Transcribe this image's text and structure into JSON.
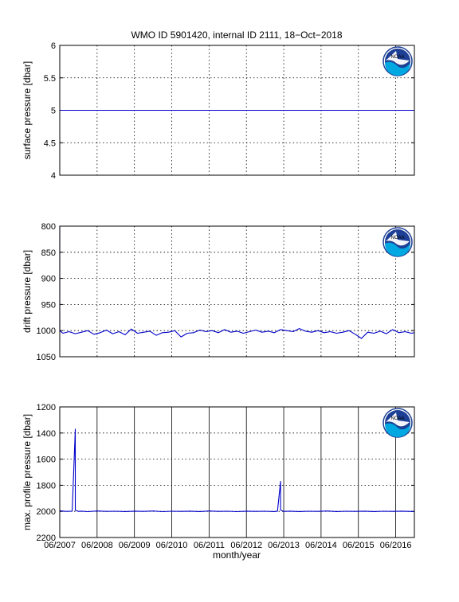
{
  "title": "WMO ID 5901420, internal ID 2111, 18−Oct−2018",
  "xlabel": "month/year",
  "x_ticks": [
    "06/2007",
    "06/2008",
    "06/2009",
    "06/2010",
    "06/2011",
    "06/2012",
    "06/2013",
    "06/2014",
    "06/2015",
    "06/2016"
  ],
  "x_range": [
    "2007-06",
    "2016-12"
  ],
  "logo": {
    "name": "noaa-logo",
    "text": "NOAA",
    "colors": [
      "#1d3f95",
      "#00a8e1",
      "#ffffff"
    ]
  },
  "line_color": "#0000cc",
  "chart_data": [
    {
      "type": "line",
      "ylabel": "surface pressure [dbar]",
      "ylim": [
        4,
        6
      ],
      "y_reversed": false,
      "yticks": [
        "4",
        "4.5",
        "5",
        "5.5",
        "6"
      ],
      "grid": "dotted",
      "series": [
        {
          "x": [
            "2007-06",
            "2016-12"
          ],
          "y": [
            5,
            5
          ]
        }
      ]
    },
    {
      "type": "line",
      "ylabel": "drift pressure [dbar]",
      "ylim": [
        800,
        1050
      ],
      "y_reversed": true,
      "yticks": [
        "800",
        "850",
        "900",
        "950",
        "1000",
        "1050"
      ],
      "grid": "dotted",
      "series": [
        {
          "x": [
            "2007-06",
            "2007-06",
            "2007-07",
            "2007-09",
            "2007-11",
            "2008-01",
            "2008-03",
            "2008-05",
            "2008-07",
            "2008-09",
            "2008-11",
            "2009-01",
            "2009-03",
            "2009-05",
            "2009-07",
            "2009-09",
            "2009-11",
            "2010-01",
            "2010-03",
            "2010-05",
            "2010-07",
            "2010-09",
            "2010-11",
            "2011-01",
            "2011-03",
            "2011-05",
            "2011-07",
            "2011-09",
            "2011-11",
            "2012-01",
            "2012-03",
            "2012-05",
            "2012-07",
            "2012-09",
            "2012-11",
            "2013-01",
            "2013-03",
            "2013-05",
            "2013-07",
            "2013-09",
            "2013-11",
            "2014-01",
            "2014-03",
            "2014-05",
            "2014-07",
            "2014-09",
            "2014-11",
            "2015-01",
            "2015-03",
            "2015-05",
            "2015-07",
            "2015-09",
            "2015-11",
            "2016-01",
            "2016-03",
            "2016-05",
            "2016-07",
            "2016-09",
            "2016-11",
            "2016-12"
          ],
          "y": [
            800,
            1000,
            1005,
            1002,
            1006,
            1003,
            1000,
            1007,
            1004,
            999,
            1006,
            1002,
            1008,
            997,
            1005,
            1003,
            1001,
            1009,
            1004,
            1003,
            1000,
            1012,
            1005,
            1004,
            999,
            1002,
            1000,
            1004,
            998,
            1003,
            1001,
            1005,
            1002,
            999,
            1003,
            1001,
            1004,
            998,
            1000,
            1002,
            996,
            1001,
            1003,
            1000,
            1004,
            1002,
            1005,
            1003,
            1000,
            1007,
            1015,
            1003,
            1005,
            1001,
            1006,
            998,
            1004,
            1002,
            1005,
            1004
          ]
        }
      ]
    },
    {
      "type": "line",
      "ylabel": "max. profile pressure [dbar]",
      "ylim": [
        1200,
        2200
      ],
      "y_reversed": true,
      "yticks": [
        "1200",
        "1400",
        "1600",
        "1800",
        "2000",
        "2200"
      ],
      "grid": "dotted",
      "series": [
        {
          "x": [
            "2007-06",
            "2007-08",
            "2007-10",
            "2007-11",
            "2007-11",
            "2007-12",
            "2008-01",
            "2008-03",
            "2008-06",
            "2008-09",
            "2008-12",
            "2009-03",
            "2009-06",
            "2009-09",
            "2009-12",
            "2010-03",
            "2010-06",
            "2010-09",
            "2010-12",
            "2011-03",
            "2011-06",
            "2011-09",
            "2011-12",
            "2012-03",
            "2012-06",
            "2012-09",
            "2012-12",
            "2013-03",
            "2013-04",
            "2013-05",
            "2013-05",
            "2013-06",
            "2013-08",
            "2013-11",
            "2014-02",
            "2014-05",
            "2014-08",
            "2014-11",
            "2015-02",
            "2015-05",
            "2015-08",
            "2015-11",
            "2016-02",
            "2016-05",
            "2016-08",
            "2016-12"
          ],
          "y": [
            1995,
            2000,
            1998,
            1370,
            1990,
            2000,
            1998,
            2002,
            1997,
            2000,
            1999,
            2001,
            1998,
            2000,
            1997,
            2002,
            1999,
            2000,
            1998,
            2001,
            1997,
            2000,
            1999,
            2002,
            1998,
            2000,
            1999,
            2001,
            1998,
            1770,
            1990,
            2000,
            1998,
            2001,
            1999,
            2000,
            1997,
            2001,
            1999,
            2000,
            1998,
            2001,
            1999,
            2000,
            1998,
            2001
          ]
        }
      ]
    }
  ]
}
